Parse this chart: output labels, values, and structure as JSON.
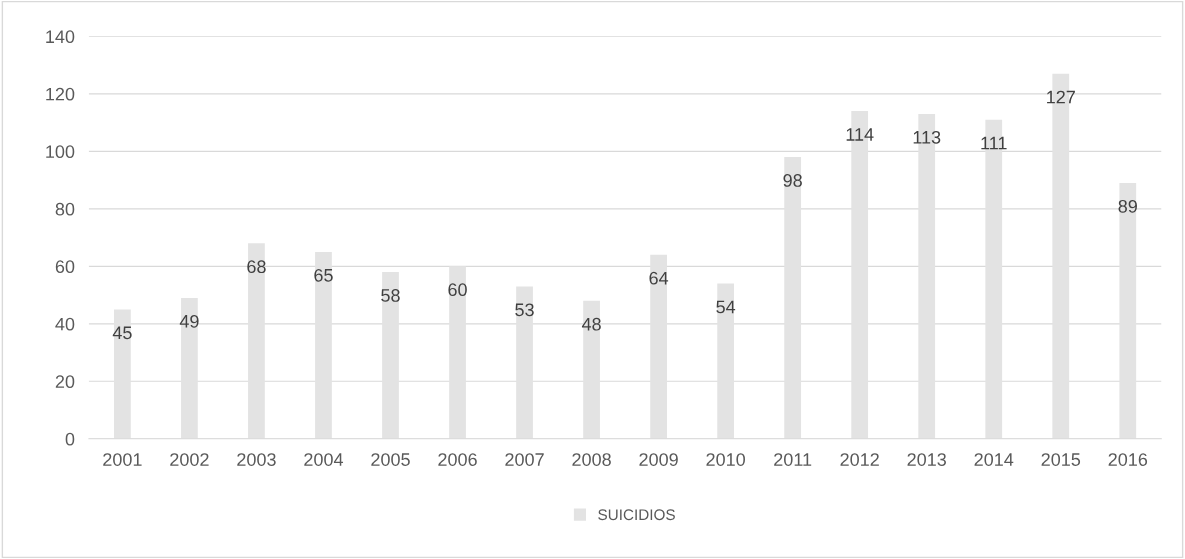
{
  "chart_data": {
    "type": "bar",
    "categories": [
      "2001",
      "2002",
      "2003",
      "2004",
      "2005",
      "2006",
      "2007",
      "2008",
      "2009",
      "2010",
      "2011",
      "2012",
      "2013",
      "2014",
      "2015",
      "2016"
    ],
    "series": [
      {
        "name": "SUICIDIOS",
        "color": "#e3e3e3",
        "values": [
          45,
          49,
          68,
          65,
          58,
          60,
          53,
          48,
          64,
          54,
          98,
          114,
          113,
          111,
          127,
          89
        ]
      }
    ],
    "ylim": [
      0,
      140
    ],
    "yticks": [
      0,
      20,
      40,
      60,
      80,
      100,
      120,
      140
    ],
    "grid": "y",
    "legend": "bottom",
    "data_labels": true
  }
}
